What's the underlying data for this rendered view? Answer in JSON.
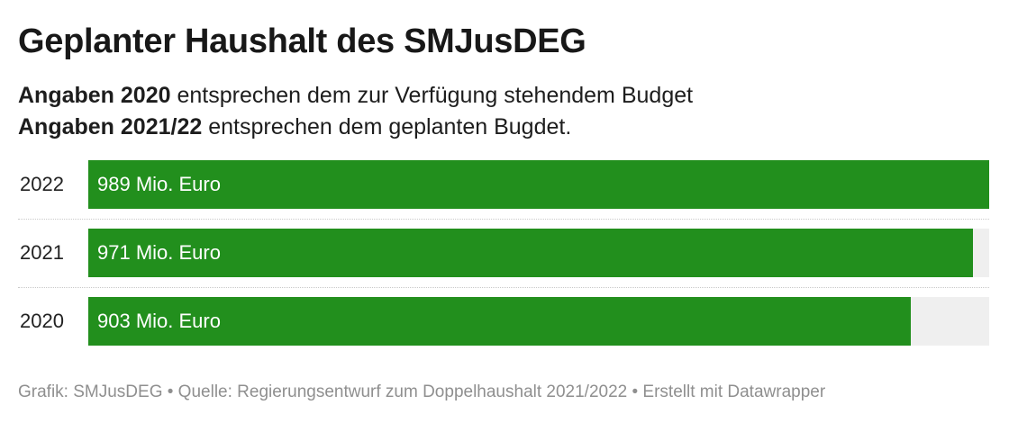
{
  "chart_data": {
    "type": "bar",
    "title": "Geplanter Haushalt des SMJusDEG",
    "notes": [
      {
        "bold": "Angaben 2020",
        "text": " entsprechen dem zur Verfügung stehendem Budget"
      },
      {
        "bold": "Angaben 2021/22",
        "text": " entsprechen dem geplanten Bugdet."
      }
    ],
    "categories": [
      "2022",
      "2021",
      "2020"
    ],
    "values": [
      989,
      971,
      903
    ],
    "value_labels": [
      "989 Mio. Euro",
      "971 Mio. Euro",
      "903 Mio. Euro"
    ],
    "xlim": [
      0,
      989
    ],
    "bar_color": "#228f1d",
    "track_color": "#efefef",
    "footer": "Grafik: SMJusDEG • Quelle: Regierungsentwurf zum Doppelhaushalt 2021/2022 • Erstellt mit Datawrapper"
  }
}
